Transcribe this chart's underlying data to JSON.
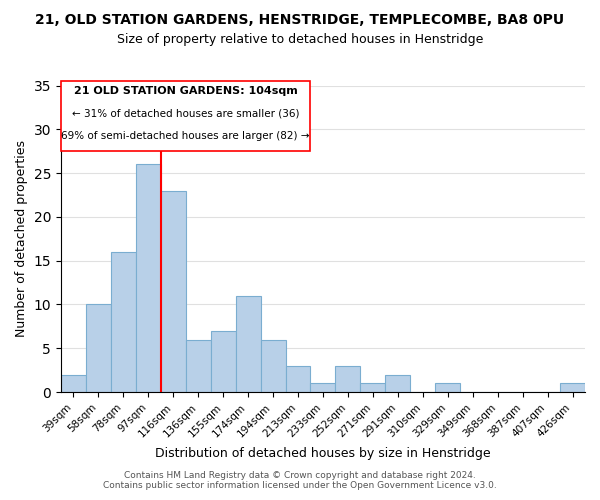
{
  "title": "21, OLD STATION GARDENS, HENSTRIDGE, TEMPLECOMBE, BA8 0PU",
  "subtitle": "Size of property relative to detached houses in Henstridge",
  "xlabel": "Distribution of detached houses by size in Henstridge",
  "ylabel": "Number of detached properties",
  "footer_line1": "Contains HM Land Registry data © Crown copyright and database right 2024.",
  "footer_line2": "Contains public sector information licensed under the Open Government Licence v3.0.",
  "bin_labels": [
    "39sqm",
    "58sqm",
    "78sqm",
    "97sqm",
    "116sqm",
    "136sqm",
    "155sqm",
    "174sqm",
    "194sqm",
    "213sqm",
    "233sqm",
    "252sqm",
    "271sqm",
    "291sqm",
    "310sqm",
    "329sqm",
    "349sqm",
    "368sqm",
    "387sqm",
    "407sqm",
    "426sqm"
  ],
  "bar_values": [
    2,
    10,
    16,
    26,
    23,
    6,
    7,
    11,
    6,
    3,
    1,
    3,
    1,
    2,
    0,
    1,
    0,
    0,
    0,
    0,
    1
  ],
  "bar_color": "#b8d0e8",
  "bar_edge_color": "#7aadd0",
  "ylim": [
    0,
    35
  ],
  "yticks": [
    0,
    5,
    10,
    15,
    20,
    25,
    30,
    35
  ],
  "property_line_color": "red",
  "annotation_title": "21 OLD STATION GARDENS: 104sqm",
  "annotation_line1": "← 31% of detached houses are smaller (36)",
  "annotation_line2": "69% of semi-detached houses are larger (82) →",
  "background_color": "#ffffff",
  "grid_color": "#e0e0e0"
}
